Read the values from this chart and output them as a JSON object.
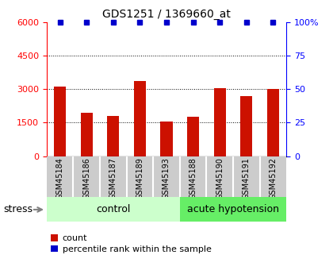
{
  "title": "GDS1251 / 1369660_at",
  "samples": [
    "GSM45184",
    "GSM45186",
    "GSM45187",
    "GSM45189",
    "GSM45193",
    "GSM45188",
    "GSM45190",
    "GSM45191",
    "GSM45192"
  ],
  "counts": [
    3100,
    1950,
    1800,
    3350,
    1550,
    1750,
    3050,
    2700,
    3000
  ],
  "percentiles": [
    100,
    100,
    100,
    100,
    100,
    100,
    100,
    100,
    100
  ],
  "bar_color": "#cc1100",
  "dot_color": "#0000cc",
  "ylim_left": [
    0,
    6000
  ],
  "ylim_right": [
    0,
    100
  ],
  "yticks_left": [
    0,
    1500,
    3000,
    4500,
    6000
  ],
  "yticks_right": [
    0,
    25,
    50,
    75,
    100
  ],
  "groups": [
    {
      "label": "control",
      "start": 0,
      "end": 5,
      "color": "#ccffcc"
    },
    {
      "label": "acute hypotension",
      "start": 5,
      "end": 9,
      "color": "#66ee66"
    }
  ],
  "stress_label": "stress",
  "legend_count_label": "count",
  "legend_pct_label": "percentile rank within the sample",
  "background_color": "#ffffff",
  "tick_area_color": "#cccccc",
  "bar_width": 0.45
}
